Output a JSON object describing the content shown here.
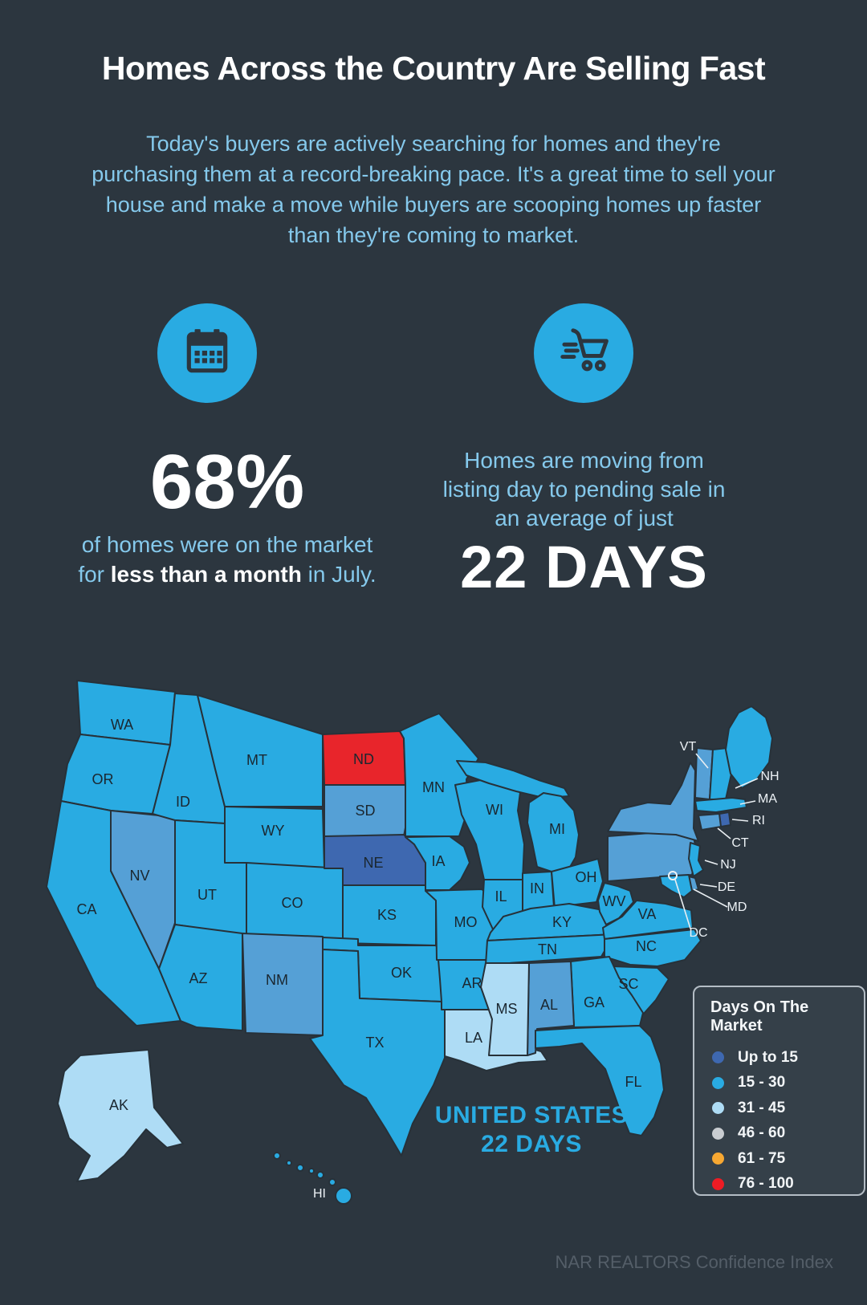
{
  "colors": {
    "background": "#2c363f",
    "accent_blue": "#29abe2",
    "light_text": "#85c9ec",
    "white": "#ffffff"
  },
  "header": {
    "title": "Homes Across the Country Are Selling Fast",
    "subtitle": "Today's buyers are actively searching for homes and they're purchasing them at a record-breaking pace. It's a great time to sell your house and make a move while buyers are scooping homes up faster than they're coming to market."
  },
  "stats": {
    "left": {
      "icon": "calendar-icon",
      "value": "68%",
      "text_pre": "of homes were on the market for ",
      "text_bold": "less than a month",
      "text_post": " in July."
    },
    "right": {
      "icon": "cart-icon",
      "description": "Homes are moving from listing day to pending sale in an average of just",
      "value": "22 DAYS"
    }
  },
  "map": {
    "country_label": "UNITED STATES",
    "country_value": "22 DAYS"
  },
  "legend": {
    "title": "Days On The Market",
    "items": [
      {
        "label": "Up to 15",
        "color": "#3e68b0"
      },
      {
        "label": "15 - 30",
        "color": "#29abe2"
      },
      {
        "label": "31 - 45",
        "color": "#aedcf5"
      },
      {
        "label": "46 - 60",
        "color": "#c9cdd1"
      },
      {
        "label": "61 - 75",
        "color": "#f7a832"
      },
      {
        "label": "76 - 100",
        "color": "#ed1c24"
      }
    ]
  },
  "footer": {
    "credit": "NAR REALTORS Confidence Index"
  },
  "chart_data": {
    "type": "choropleth_map",
    "region": "United States",
    "metric": "Days On The Market",
    "national_value": "22 DAYS",
    "national_share_under_month": "68%",
    "legend_buckets": [
      "Up to 15",
      "15 - 30",
      "31 - 45",
      "46 - 60",
      "61 - 75",
      "76 - 100"
    ],
    "states": [
      {
        "id": "WA",
        "fill": "#29abe2"
      },
      {
        "id": "OR",
        "fill": "#29abe2"
      },
      {
        "id": "CA",
        "fill": "#29abe2"
      },
      {
        "id": "NV",
        "fill": "#55a0d6"
      },
      {
        "id": "ID",
        "fill": "#29abe2"
      },
      {
        "id": "MT",
        "fill": "#29abe2"
      },
      {
        "id": "WY",
        "fill": "#29abe2"
      },
      {
        "id": "UT",
        "fill": "#29abe2"
      },
      {
        "id": "CO",
        "fill": "#29abe2"
      },
      {
        "id": "AZ",
        "fill": "#29abe2"
      },
      {
        "id": "NM",
        "fill": "#55a0d6"
      },
      {
        "id": "ND",
        "fill": "#e8252b"
      },
      {
        "id": "SD",
        "fill": "#55a0d6"
      },
      {
        "id": "NE",
        "fill": "#3e68b0"
      },
      {
        "id": "KS",
        "fill": "#29abe2"
      },
      {
        "id": "OK",
        "fill": "#29abe2"
      },
      {
        "id": "TX",
        "fill": "#29abe2"
      },
      {
        "id": "MN",
        "fill": "#29abe2"
      },
      {
        "id": "IA",
        "fill": "#29abe2"
      },
      {
        "id": "MO",
        "fill": "#29abe2"
      },
      {
        "id": "AR",
        "fill": "#29abe2"
      },
      {
        "id": "LA",
        "fill": "#aedcf5"
      },
      {
        "id": "WI",
        "fill": "#29abe2"
      },
      {
        "id": "IL",
        "fill": "#29abe2"
      },
      {
        "id": "MI",
        "fill": "#29abe2"
      },
      {
        "id": "IN",
        "fill": "#29abe2"
      },
      {
        "id": "OH",
        "fill": "#29abe2"
      },
      {
        "id": "KY",
        "fill": "#29abe2"
      },
      {
        "id": "TN",
        "fill": "#29abe2"
      },
      {
        "id": "MS",
        "fill": "#aedcf5"
      },
      {
        "id": "AL",
        "fill": "#55a0d6"
      },
      {
        "id": "GA",
        "fill": "#29abe2"
      },
      {
        "id": "FL",
        "fill": "#29abe2"
      },
      {
        "id": "SC",
        "fill": "#29abe2"
      },
      {
        "id": "NC",
        "fill": "#29abe2"
      },
      {
        "id": "VA",
        "fill": "#29abe2"
      },
      {
        "id": "WV",
        "fill": "#29abe2"
      },
      {
        "id": "PA",
        "fill": "#55a0d6"
      },
      {
        "id": "NY",
        "fill": "#55a0d6"
      },
      {
        "id": "VT",
        "fill": "#55a0d6"
      },
      {
        "id": "NH",
        "fill": "#29abe2"
      },
      {
        "id": "ME",
        "fill": "#29abe2"
      },
      {
        "id": "MA",
        "fill": "#29abe2"
      },
      {
        "id": "RI",
        "fill": "#3e68b0"
      },
      {
        "id": "CT",
        "fill": "#55a0d6"
      },
      {
        "id": "NJ",
        "fill": "#29abe2"
      },
      {
        "id": "DE",
        "fill": "#55a0d6"
      },
      {
        "id": "MD",
        "fill": "#29abe2"
      },
      {
        "id": "DC",
        "fill": null
      },
      {
        "id": "AK",
        "fill": "#aedcf5"
      },
      {
        "id": "HI",
        "fill": "#29abe2"
      }
    ]
  }
}
